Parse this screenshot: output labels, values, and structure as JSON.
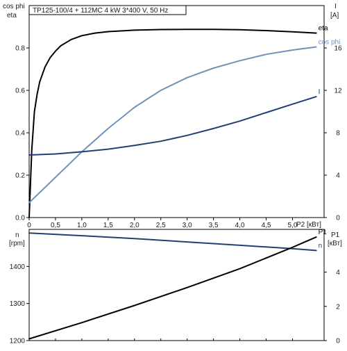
{
  "chart_data": [
    {
      "type": "line",
      "title": "TP125-100/4 + 112MC   4 kW   3*400 V, 50 Hz",
      "x_axis": {
        "ticks": [
          0,
          0.5,
          1,
          1.5,
          2,
          2.5,
          3,
          3.5,
          4,
          4.5,
          5
        ],
        "tick_labels": [
          "0",
          "0,5",
          "1,0",
          "1,5",
          "2,0",
          "2,5",
          "3,0",
          "3,5",
          "4,0",
          "4,5",
          "5,0"
        ],
        "label": "P2 [кВт]",
        "range": [
          0,
          5.6
        ]
      },
      "y_left": {
        "label_line1": "cos phi",
        "label_line2": "eta",
        "range": [
          0,
          1.0
        ],
        "ticks": [
          0,
          0.2,
          0.4,
          0.6,
          0.8
        ],
        "tick_labels": [
          "0.0",
          "0.2",
          "0.4",
          "0.6",
          "0.8"
        ]
      },
      "y_right": {
        "label_line1": "I",
        "label_line2": "[A]",
        "range": [
          0,
          20
        ],
        "ticks": [
          0,
          4,
          8,
          12,
          16
        ],
        "tick_labels": [
          "0",
          "4",
          "8",
          "12",
          "16"
        ]
      },
      "series": [
        {
          "name": "eta",
          "axis": "left",
          "color": "#000000",
          "x": [
            0,
            0.05,
            0.1,
            0.15,
            0.2,
            0.3,
            0.4,
            0.5,
            0.6,
            0.8,
            1.0,
            1.25,
            1.5,
            2.0,
            2.5,
            3.0,
            3.5,
            4.0,
            4.5,
            5.0,
            5.45
          ],
          "y": [
            0.0,
            0.32,
            0.5,
            0.58,
            0.64,
            0.71,
            0.755,
            0.785,
            0.81,
            0.84,
            0.858,
            0.87,
            0.877,
            0.884,
            0.887,
            0.888,
            0.888,
            0.886,
            0.882,
            0.876,
            0.87
          ]
        },
        {
          "name": "cos phi",
          "axis": "left",
          "color": "#6f93b8",
          "x": [
            0,
            0.25,
            0.5,
            0.75,
            1.0,
            1.5,
            2.0,
            2.5,
            3.0,
            3.5,
            4.0,
            4.5,
            5.0,
            5.45
          ],
          "y": [
            0.07,
            0.13,
            0.19,
            0.25,
            0.31,
            0.42,
            0.52,
            0.6,
            0.66,
            0.705,
            0.74,
            0.77,
            0.79,
            0.805
          ]
        },
        {
          "name": "I",
          "axis": "right",
          "color": "#1f4070",
          "x": [
            0,
            0.5,
            1.0,
            1.5,
            2.0,
            2.5,
            3.0,
            3.5,
            4.0,
            4.5,
            5.0,
            5.45
          ],
          "y": [
            5.9,
            6.0,
            6.2,
            6.45,
            6.8,
            7.2,
            7.75,
            8.4,
            9.1,
            9.9,
            10.7,
            11.4
          ]
        }
      ]
    },
    {
      "type": "line",
      "x_axis": {
        "range": [
          0,
          5.6
        ]
      },
      "y_left": {
        "label_line1": "n",
        "label_line2": "[rpm]",
        "range": [
          1200,
          1500
        ],
        "ticks": [
          1200,
          1300,
          1400
        ],
        "tick_labels": [
          "1200",
          "1300",
          "1400"
        ]
      },
      "y_right": {
        "label_line1": "P1",
        "label_line2": "[кВт]",
        "range": [
          0,
          6.5
        ],
        "ticks": [
          0,
          2,
          4
        ],
        "tick_labels": [
          "0",
          "2",
          "4"
        ]
      },
      "series": [
        {
          "name": "n",
          "axis": "left",
          "color": "#1f4070",
          "x": [
            0,
            1,
            2,
            3,
            4,
            5,
            5.45
          ],
          "y": [
            1490,
            1483,
            1475,
            1466,
            1457,
            1448,
            1443
          ]
        },
        {
          "name": "P1",
          "axis": "right",
          "color": "#000000",
          "x": [
            0,
            1,
            2,
            3,
            4,
            5,
            5.45
          ],
          "y": [
            0.1,
            1.05,
            2.05,
            3.1,
            4.2,
            5.45,
            6.05
          ]
        }
      ]
    }
  ]
}
